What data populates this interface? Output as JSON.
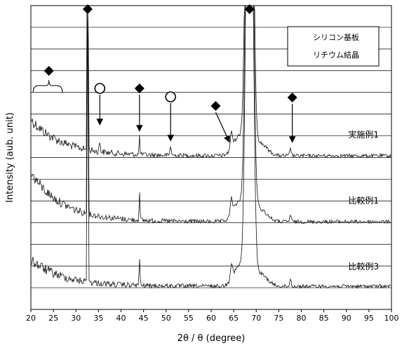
{
  "chart_data": {
    "type": "line",
    "xlabel": "2θ / θ (degree)",
    "ylabel": "Intensity (aub. unit)",
    "xlim": [
      20,
      100
    ],
    "xticks": [
      20,
      25,
      30,
      35,
      40,
      45,
      50,
      55,
      60,
      65,
      70,
      75,
      80,
      85,
      90,
      95,
      100
    ],
    "grid": "horizontal",
    "legend": {
      "placement": "top-right",
      "entries": [
        {
          "marker": "diamond",
          "label": "シリコン基板"
        },
        {
          "marker": "circle",
          "label": "リチウム結晶"
        }
      ]
    },
    "series": [
      {
        "name": "実施例1",
        "peaks": [
          32.6,
          35.3,
          44.1,
          51.0,
          64.5,
          68.5,
          77.6
        ],
        "background_decay_start": 20,
        "noise": "high"
      },
      {
        "name": "比較例1",
        "peaks": [
          32.6,
          44.1,
          64.5,
          68.5,
          77.6
        ],
        "background_decay_start": 20,
        "noise": "high"
      },
      {
        "name": "比較例3",
        "peaks": [
          32.6,
          44.1,
          64.5,
          68.5,
          77.6
        ],
        "background_decay_start": 20,
        "noise": "high"
      }
    ],
    "annotations": [
      {
        "marker": "diamond",
        "x": 32.6,
        "kind": "silicon"
      },
      {
        "marker": "diamond",
        "x": 68.5,
        "kind": "silicon"
      },
      {
        "marker": "diamond",
        "x": 24.0,
        "kind": "silicon",
        "bracket": [
          20.5,
          27.0
        ]
      },
      {
        "marker": "circle",
        "x": 35.3,
        "kind": "lithium",
        "arrow": true
      },
      {
        "marker": "diamond",
        "x": 44.1,
        "kind": "silicon",
        "arrow": true
      },
      {
        "marker": "circle",
        "x": 51.0,
        "kind": "lithium",
        "arrow": true
      },
      {
        "marker": "diamond",
        "x": 61.0,
        "kind": "silicon",
        "arrow": true
      },
      {
        "marker": "diamond",
        "x": 78.0,
        "kind": "silicon",
        "arrow": true
      }
    ]
  }
}
